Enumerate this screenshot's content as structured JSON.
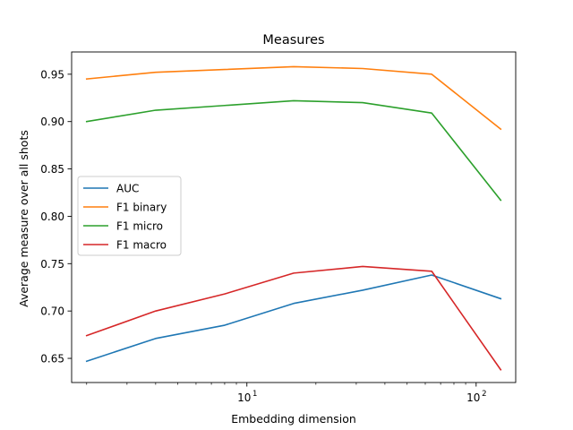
{
  "chart_data": {
    "type": "line",
    "title": "Measures",
    "xlabel": "Embedding dimension",
    "ylabel": "Average measure over all shots",
    "xscale": "log",
    "x": [
      2,
      4,
      8,
      16,
      32,
      64,
      128
    ],
    "xlim": [
      1.72,
      148.8
    ],
    "ylim": [
      0.6245,
      0.9735
    ],
    "x_major_ticks": [
      {
        "value": 10,
        "label": "10",
        "exp": "1"
      },
      {
        "value": 100,
        "label": "10",
        "exp": "2"
      }
    ],
    "y_ticks": [
      {
        "value": 0.65,
        "label": "0.65"
      },
      {
        "value": 0.7,
        "label": "0.70"
      },
      {
        "value": 0.75,
        "label": "0.75"
      },
      {
        "value": 0.8,
        "label": "0.80"
      },
      {
        "value": 0.85,
        "label": "0.85"
      },
      {
        "value": 0.9,
        "label": "0.90"
      },
      {
        "value": 0.95,
        "label": "0.95"
      }
    ],
    "grid": false,
    "legend_position": "center-left",
    "series": [
      {
        "name": "AUC",
        "color": "#1f77b4",
        "values": [
          0.647,
          0.671,
          0.685,
          0.708,
          0.722,
          0.738,
          0.713
        ]
      },
      {
        "name": "F1 binary",
        "color": "#ff7f0e",
        "values": [
          0.945,
          0.952,
          0.955,
          0.958,
          0.956,
          0.95,
          0.892
        ]
      },
      {
        "name": "F1 micro",
        "color": "#2ca02c",
        "values": [
          0.9,
          0.912,
          0.917,
          0.922,
          0.92,
          0.909,
          0.817
        ]
      },
      {
        "name": "F1 macro",
        "color": "#d62728",
        "values": [
          0.674,
          0.7,
          0.718,
          0.74,
          0.747,
          0.742,
          0.638
        ]
      }
    ]
  }
}
